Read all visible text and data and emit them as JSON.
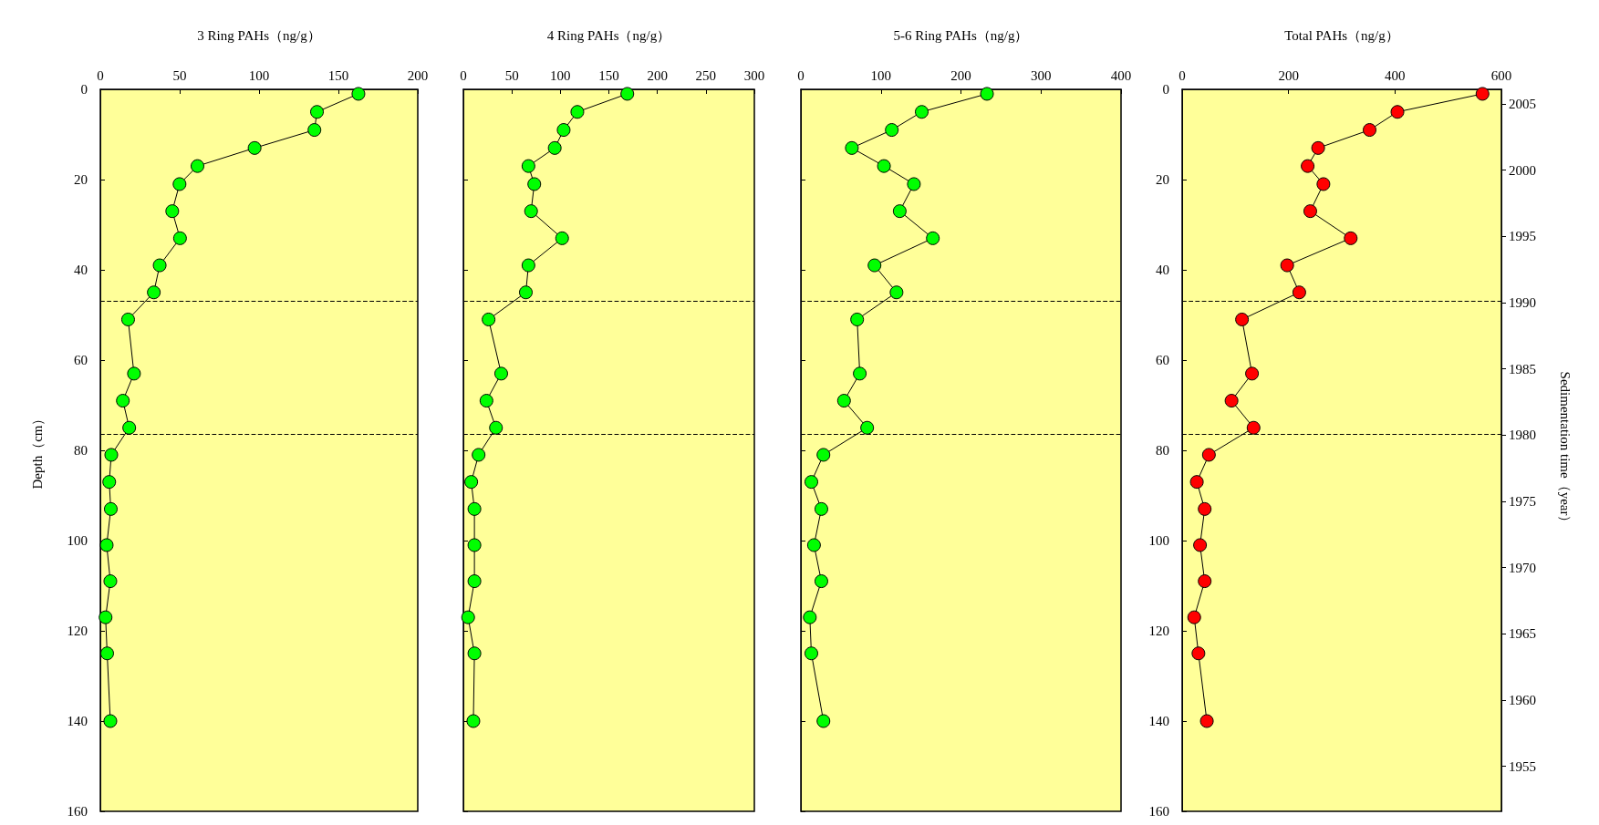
{
  "chart_data": [
    {
      "type": "line",
      "xlabel": "3 Ring PAHs（ng/g）",
      "ylabel": "Depth（cm）",
      "xlim": [
        0,
        200
      ],
      "xticks": [
        0,
        50,
        100,
        150,
        200
      ],
      "ylim": [
        160,
        0
      ],
      "yticks": [
        0,
        20,
        40,
        60,
        80,
        100,
        120,
        140,
        160
      ],
      "grid": false,
      "marker": "circle",
      "line_style": "solid",
      "series": [
        {
          "color": "#00ff00",
          "x": [
            162.6,
            136.5,
            134.9,
            97.2,
            61.2,
            49.9,
            45.3,
            50.2,
            37.4,
            33.7,
            17.5,
            21.2,
            14.2,
            18.2,
            6.9,
            5.6,
            6.6,
            4.0,
            6.3,
            3.3,
            4.3,
            6.3
          ],
          "values": [
            1,
            5,
            9,
            13,
            17,
            21,
            27,
            33,
            39,
            45,
            51,
            63,
            69,
            75,
            81,
            87,
            93,
            101,
            109,
            117,
            125,
            140
          ]
        }
      ],
      "ref_lines": [
        {
          "axis": "y",
          "value": 47,
          "line_style": "dashed"
        },
        {
          "axis": "y",
          "value": 76.5,
          "line_style": "dashed"
        }
      ]
    },
    {
      "type": "line",
      "xlabel": "4 Ring PAHs（ng/g）",
      "xlim": [
        0,
        300
      ],
      "xticks": [
        0,
        50,
        100,
        150,
        200,
        250,
        300
      ],
      "ylim": [
        160,
        0
      ],
      "yticks": [
        0,
        20,
        40,
        60,
        80,
        100,
        120,
        140,
        160
      ],
      "tick_labels": "x",
      "grid": false,
      "marker": "circle",
      "line_style": "solid",
      "series": [
        {
          "color": "#00ff00",
          "x": [
            169,
            117.5,
            103.4,
            94.2,
            67.1,
            73.1,
            69.8,
            101.8,
            67.1,
            64.4,
            26,
            39,
            23.8,
            33.6,
            15.7,
            8.1,
            11.4,
            11.4,
            11.4,
            4.9,
            11.4,
            10.3
          ],
          "values": [
            1,
            5,
            9,
            13,
            17,
            21,
            27,
            33,
            39,
            45,
            51,
            63,
            69,
            75,
            81,
            87,
            93,
            101,
            109,
            117,
            125,
            140
          ]
        }
      ],
      "ref_lines": [
        {
          "axis": "y",
          "value": 47,
          "line_style": "dashed"
        },
        {
          "axis": "y",
          "value": 76.5,
          "line_style": "dashed"
        }
      ]
    },
    {
      "type": "line",
      "xlabel": "5-6 Ring PAHs（ng/g）",
      "xlim": [
        0,
        400
      ],
      "xticks": [
        0,
        100,
        200,
        300,
        400
      ],
      "ylim": [
        160,
        0
      ],
      "yticks": [
        0,
        20,
        40,
        60,
        80,
        100,
        120,
        140,
        160
      ],
      "tick_labels": "x",
      "grid": false,
      "marker": "circle",
      "line_style": "solid",
      "series": [
        {
          "color": "#00ff00",
          "x": [
            232.5,
            151,
            113.6,
            63.7,
            103.8,
            141.2,
            123.5,
            164.9,
            92,
            119.5,
            70.3,
            73.6,
            53.9,
            82.8,
            28.2,
            13.1,
            25.6,
            16.4,
            25.6,
            11.2,
            13.1,
            28.2
          ],
          "values": [
            1,
            5,
            9,
            13,
            17,
            21,
            27,
            33,
            39,
            45,
            51,
            63,
            69,
            75,
            81,
            87,
            93,
            101,
            109,
            117,
            125,
            140
          ]
        }
      ],
      "ref_lines": [
        {
          "axis": "y",
          "value": 47,
          "line_style": "dashed"
        },
        {
          "axis": "y",
          "value": 76.5,
          "line_style": "dashed"
        }
      ]
    },
    {
      "type": "line",
      "xlabel": "Total PAHs（ng/g）",
      "y2label": "Sedimentation time（year）",
      "xlim": [
        0,
        600
      ],
      "xticks": [
        0,
        200,
        400,
        600
      ],
      "ylim": [
        160,
        0
      ],
      "yticks": [
        0,
        20,
        40,
        60,
        80,
        100,
        120,
        140,
        160
      ],
      "y2lim": [
        1951.6,
        2006.1
      ],
      "y2ticks": [
        1955,
        1960,
        1965,
        1970,
        1975,
        1980,
        1985,
        1990,
        1995,
        2000,
        2005
      ],
      "grid": false,
      "marker": "circle",
      "line_style": "solid",
      "series": [
        {
          "color": "#ff0000",
          "x": [
            564.5,
            404.6,
            352.3,
            255.6,
            235.9,
            265.5,
            240.8,
            316.8,
            197.4,
            220.1,
            112.5,
            131.3,
            92.8,
            134.2,
            50.3,
            27.6,
            42.4,
            33.6,
            42.4,
            22.7,
            30.6,
            46.4
          ],
          "values": [
            1,
            5,
            9,
            13,
            17,
            21,
            27,
            33,
            39,
            45,
            51,
            63,
            69,
            75,
            81,
            87,
            93,
            101,
            109,
            117,
            125,
            140
          ]
        }
      ],
      "ref_lines": [
        {
          "axis": "y",
          "value": 47,
          "line_style": "dashed"
        },
        {
          "axis": "y",
          "value": 76.5,
          "line_style": "dashed"
        }
      ]
    }
  ]
}
